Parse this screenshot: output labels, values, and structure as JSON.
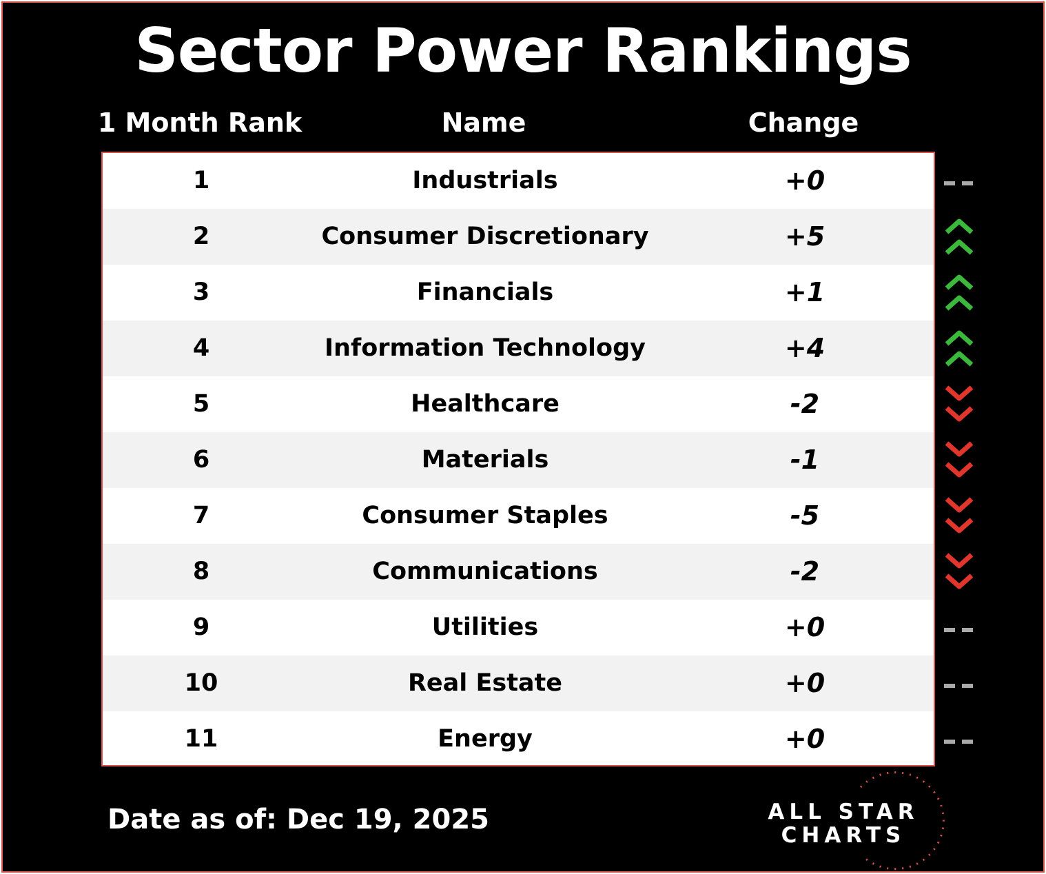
{
  "header": {
    "title": "Sector Power Rankings"
  },
  "table": {
    "columns": [
      "1 Month Rank",
      "Name",
      "Change"
    ],
    "rows": [
      [
        1,
        "Industrials",
        "+0"
      ],
      [
        2,
        "Consumer Discretionary",
        "+5"
      ],
      [
        3,
        "Financials",
        "+1"
      ],
      [
        4,
        "Information Technology",
        "+4"
      ],
      [
        5,
        "Healthcare",
        "-2"
      ],
      [
        6,
        "Materials",
        "-1"
      ],
      [
        7,
        "Consumer Staples",
        "-5"
      ],
      [
        8,
        "Communications",
        "-2"
      ],
      [
        9,
        "Utilities",
        "+0"
      ],
      [
        10,
        "Real Estate",
        "+0"
      ],
      [
        11,
        "Energy",
        "+0"
      ]
    ]
  },
  "footer": {
    "date": "Date as of: Dec 19, 2025",
    "logo": [
      "ALL STAR",
      "CHARTS"
    ]
  }
}
